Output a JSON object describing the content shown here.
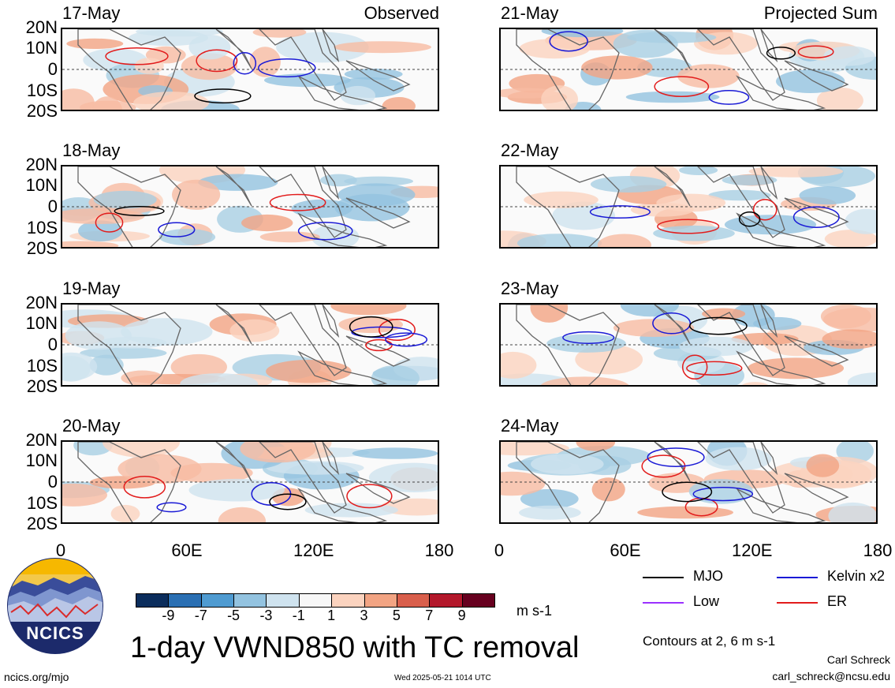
{
  "panels_left": [
    {
      "date": "17-May",
      "label": "Observed"
    },
    {
      "date": "18-May",
      "label": ""
    },
    {
      "date": "19-May",
      "label": ""
    },
    {
      "date": "20-May",
      "label": ""
    }
  ],
  "panels_right": [
    {
      "date": "21-May",
      "label": "Projected Sum"
    },
    {
      "date": "22-May",
      "label": ""
    },
    {
      "date": "23-May",
      "label": ""
    },
    {
      "date": "24-May",
      "label": ""
    }
  ],
  "lat_labels": [
    "20N",
    "10N",
    "0",
    "10S",
    "20S"
  ],
  "lon_labels": [
    "0",
    "60E",
    "120E",
    "180"
  ],
  "colorbar": {
    "ticks": [
      "-9",
      "-7",
      "-5",
      "-3",
      "-1",
      "1",
      "3",
      "5",
      "7",
      "9"
    ],
    "colors": [
      "#0b2d5c",
      "#2a6fb3",
      "#4f9bd1",
      "#93c3e0",
      "#cfe3ef",
      "#f7f7f7",
      "#fbd3bf",
      "#f2a483",
      "#d95f4c",
      "#b3182b",
      "#67001f"
    ],
    "units": "m s-1"
  },
  "title": "1-day VWND850 with TC removal",
  "legend": {
    "items": [
      {
        "label": "MJO",
        "color": "#000000"
      },
      {
        "label": "Kelvin x2",
        "color": "#1a1ad6"
      },
      {
        "label": "Low",
        "color": "#9b30ff"
      },
      {
        "label": "ER",
        "color": "#e21c1c"
      }
    ],
    "contours_note": "Contours at 2, 6 m s-1"
  },
  "logo": {
    "text": "NCICS"
  },
  "footer": {
    "url": "ncics.org/mjo",
    "timestamp": "Wed 2025-05-21 1014 UTC",
    "author": "Carl Schreck",
    "email": "carl_schreck@ncsu.edu"
  }
}
